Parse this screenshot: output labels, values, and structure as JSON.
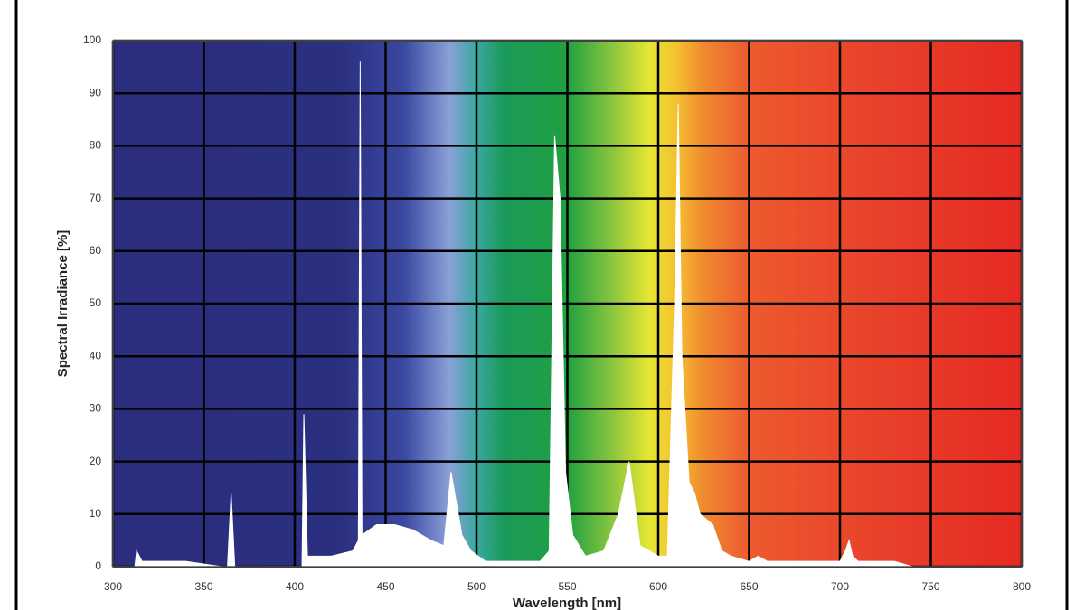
{
  "chart_data": {
    "type": "area",
    "x_label": "Wavelength [nm]",
    "y_label": "Spectral Irradiance [%]",
    "xlim": [
      300,
      800
    ],
    "xticks": [
      300,
      350,
      400,
      450,
      500,
      550,
      600,
      650,
      700,
      750,
      800
    ],
    "ylim": [
      0,
      100
    ],
    "yticks": [
      0,
      10,
      20,
      30,
      40,
      50,
      60,
      70,
      80,
      90,
      100
    ],
    "grid": true,
    "series": [
      {
        "color": "#ffffff",
        "x": [
          300,
          312,
          313,
          316,
          340,
          360,
          363,
          365,
          367,
          402,
          404,
          405,
          407,
          420,
          432,
          435,
          436,
          437,
          445,
          455,
          465,
          475,
          482,
          486,
          489,
          492,
          497,
          505,
          520,
          535,
          540,
          543,
          546,
          549,
          553,
          560,
          570,
          578,
          584,
          587,
          590,
          600,
          605,
          609,
          611,
          613,
          617,
          620,
          623,
          630,
          635,
          640,
          650,
          655,
          660,
          700,
          703,
          705,
          707,
          710,
          730,
          740,
          800
        ],
        "values": [
          0,
          0,
          3,
          1,
          1,
          0,
          0,
          14,
          0,
          0,
          0,
          29,
          2,
          2,
          3,
          5,
          96,
          6,
          8,
          8,
          7,
          5,
          4,
          18,
          12,
          6,
          3,
          1,
          1,
          1,
          3,
          82,
          70,
          18,
          6,
          2,
          3,
          10,
          20,
          12,
          4,
          2,
          2,
          50,
          88,
          40,
          16,
          14,
          10,
          8,
          3,
          2,
          1,
          2,
          1,
          1,
          3,
          5,
          2,
          1,
          1,
          0,
          0
        ]
      }
    ]
  }
}
